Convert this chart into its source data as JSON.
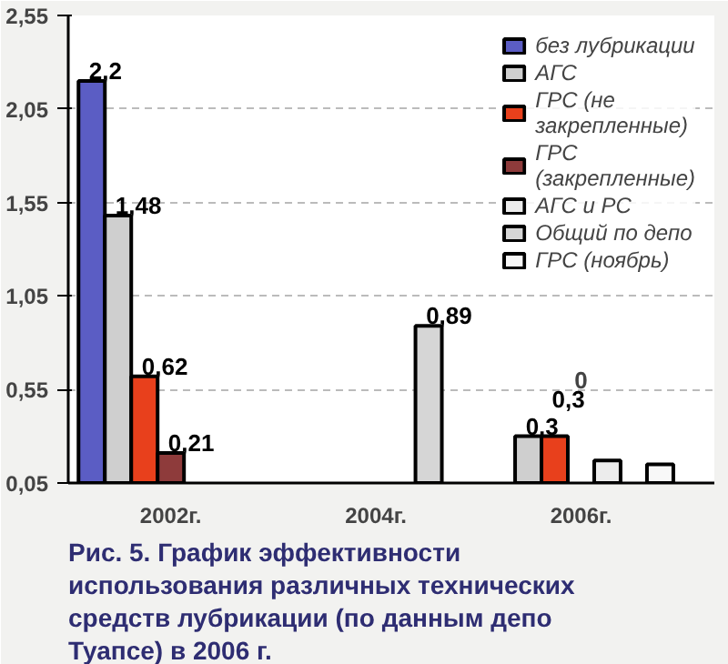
{
  "chart_data": {
    "type": "bar",
    "title": "Рис. 5. График эффективности использования различных технических средств лубрикации (по данным депо Туапсе) в 2006 г.",
    "categories": [
      "2002г.",
      "2004г.",
      "2006г."
    ],
    "series": [
      {
        "name": "без лубрикации",
        "color": "#5b5dc4",
        "values": [
          2.2,
          null,
          null
        ],
        "value_labels": [
          "2,2",
          null,
          null
        ]
      },
      {
        "name": "АГС",
        "color": "#cfcfcf",
        "values": [
          1.48,
          null,
          0.3
        ],
        "value_labels": [
          "1,48",
          null,
          "0,3"
        ]
      },
      {
        "name": "ГРС (не закрепленные)",
        "color": "#e8401c",
        "values": [
          0.62,
          null,
          0.3
        ],
        "value_labels": [
          "0,62",
          null,
          "0,3"
        ]
      },
      {
        "name": "ГРС (закрепленные)",
        "color": "#8e3b3b",
        "values": [
          0.21,
          null,
          null
        ],
        "value_labels": [
          "0,21",
          null,
          null
        ]
      },
      {
        "name": "АГС и РС",
        "color": "#ececec",
        "values": [
          null,
          null,
          0.17
        ]
      },
      {
        "name": "Общий по депо",
        "color": "#d6d6d6",
        "values": [
          null,
          0.89,
          null
        ],
        "value_labels": [
          null,
          "0,89",
          null
        ]
      },
      {
        "name": "ГРС (ноябрь)",
        "color": "#f8f8f8",
        "values": [
          null,
          null,
          0.15
        ]
      }
    ],
    "annotations": [
      "0"
    ],
    "ylim": [
      0.05,
      2.55
    ],
    "yticks": [
      {
        "value": 0.05,
        "label": "0,05"
      },
      {
        "value": 0.55,
        "label": "0,55"
      },
      {
        "value": 1.05,
        "label": "1,05"
      },
      {
        "value": 1.55,
        "label": "1,55"
      },
      {
        "value": 2.05,
        "label": "2,05"
      },
      {
        "value": 2.55,
        "label": "2,55"
      }
    ],
    "grid": "y",
    "legend": "top right"
  }
}
